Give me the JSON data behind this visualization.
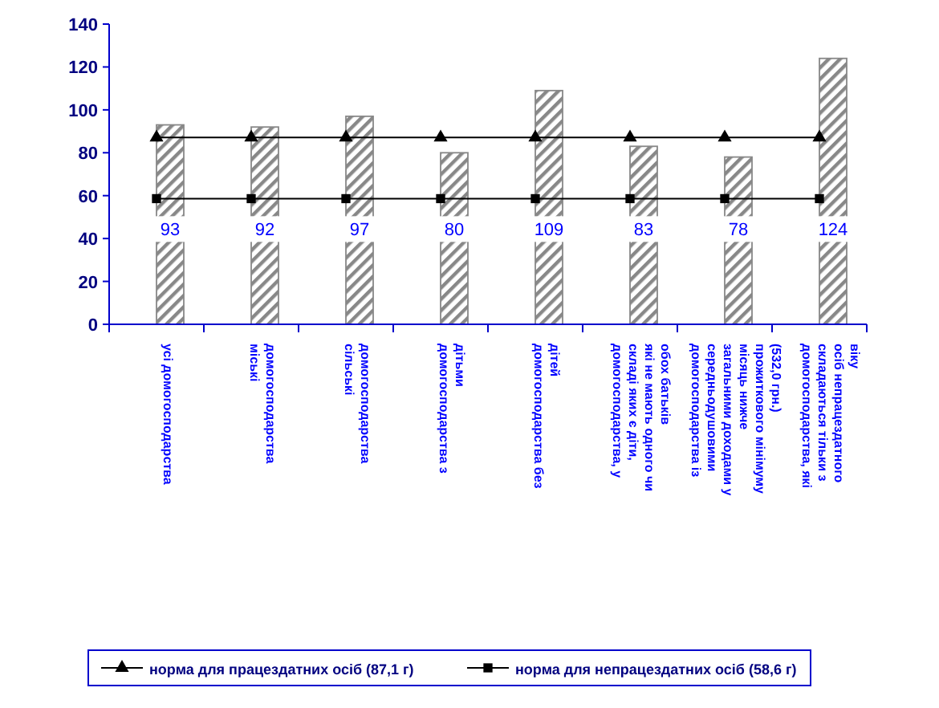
{
  "chart_data": {
    "type": "bar",
    "categories": [
      "усі домогосподарства",
      "міські домогосподарства",
      "сільські домогосподарства",
      "домогосподарства з дітьми",
      "домогосподарства без дітей",
      "домогосподарства, у складі яких є діти, які не мають одного чи обох батьків",
      "домогосподарства із середньодушовими загальними доходами у місяць нижче прожиткового мінімуму (532,0 грн.)",
      "домогосподарства, які складаються тільки з осіб непрацездатного віку"
    ],
    "ylim": [
      0,
      140
    ],
    "yticks": [
      0,
      20,
      40,
      60,
      80,
      100,
      120,
      140
    ],
    "grid": false,
    "legend": "bottom",
    "series": [
      {
        "color": "#888888",
        "values": [
          93,
          92,
          97,
          80,
          109,
          83,
          78,
          124
        ],
        "value_labels": [
          "93",
          "92",
          "97",
          "80",
          "109",
          "83",
          "78",
          "124"
        ]
      },
      {
        "type": "line",
        "name": "норма для працездатних осіб (87,1 г)",
        "color": "#000000",
        "marker": "triangle",
        "values": [
          87.1,
          87.1,
          87.1,
          87.1,
          87.1,
          87.1,
          87.1,
          87.1
        ]
      },
      {
        "type": "line",
        "name": "норма для непрацездатних осіб (58,6 г)",
        "color": "#000000",
        "marker": "square",
        "values": [
          58.6,
          58.6,
          58.6,
          58.6,
          58.6,
          58.6,
          58.6,
          58.6
        ]
      }
    ]
  }
}
